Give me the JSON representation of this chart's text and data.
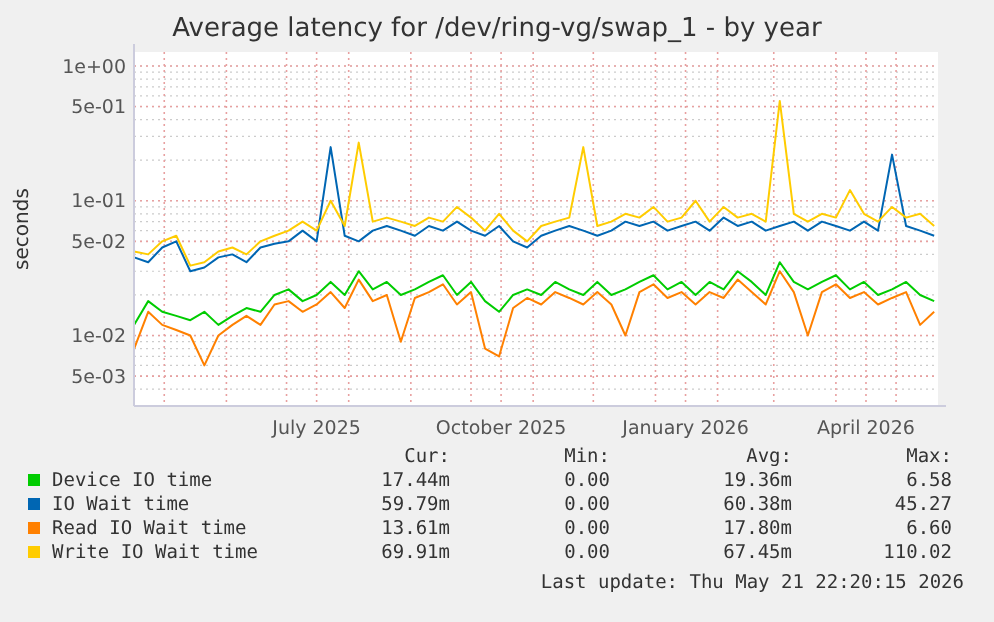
{
  "chart_data": {
    "type": "line",
    "title": "Average latency for /dev/ring-vg/swap_1 - by year",
    "ylabel": "seconds",
    "log": "y",
    "grid": true,
    "legend": "bottom",
    "line_style": "solid",
    "xlim": [
      "2025-04-15T22:00",
      "2026-05-21T22:00"
    ],
    "xticks": [
      {
        "value": "2025-05-01",
        "label": null
      },
      {
        "value": "2025-06-01",
        "label": null
      },
      {
        "value": "2025-07-01",
        "label": null
      },
      {
        "value": "2025-07-16",
        "label": "July 2025"
      },
      {
        "value": "2025-08-01",
        "label": null
      },
      {
        "value": "2025-09-01",
        "label": null
      },
      {
        "value": "2025-10-01",
        "label": null
      },
      {
        "value": "2025-10-16",
        "label": "October 2025"
      },
      {
        "value": "2025-11-01",
        "label": null
      },
      {
        "value": "2025-12-01",
        "label": null
      },
      {
        "value": "2026-01-01",
        "label": null
      },
      {
        "value": "2026-01-16",
        "label": "January 2026"
      },
      {
        "value": "2026-02-01",
        "label": null
      },
      {
        "value": "2026-03-01",
        "label": null
      },
      {
        "value": "2026-04-01",
        "label": null
      },
      {
        "value": "2026-04-16",
        "label": "April 2026"
      },
      {
        "value": "2026-05-01",
        "label": null
      }
    ],
    "ylim": [
      0.003,
      1.27
    ],
    "yticks": [
      {
        "value": 0.005,
        "label": "5e-03"
      },
      {
        "value": 0.01,
        "label": "1e-02"
      },
      {
        "value": 0.05,
        "label": "5e-02"
      },
      {
        "value": 0.1,
        "label": "1e-01"
      },
      {
        "value": 0.5,
        "label": "5e-01"
      },
      {
        "value": 1,
        "label": "1e+00"
      }
    ],
    "x": [
      "2025-04-16",
      "2025-04-23",
      "2025-04-30",
      "2025-05-07",
      "2025-05-14",
      "2025-05-21",
      "2025-05-28",
      "2025-06-04",
      "2025-06-11",
      "2025-06-18",
      "2025-06-25",
      "2025-07-02",
      "2025-07-09",
      "2025-07-16",
      "2025-07-23",
      "2025-07-30",
      "2025-08-06",
      "2025-08-13",
      "2025-08-20",
      "2025-08-27",
      "2025-09-03",
      "2025-09-10",
      "2025-09-17",
      "2025-09-24",
      "2025-10-01",
      "2025-10-08",
      "2025-10-15",
      "2025-10-22",
      "2025-10-29",
      "2025-11-05",
      "2025-11-12",
      "2025-11-19",
      "2025-11-26",
      "2025-12-03",
      "2025-12-10",
      "2025-12-17",
      "2025-12-24",
      "2025-12-31",
      "2026-01-07",
      "2026-01-14",
      "2026-01-21",
      "2026-01-28",
      "2026-02-04",
      "2026-02-11",
      "2026-02-18",
      "2026-02-25",
      "2026-03-04",
      "2026-03-11",
      "2026-03-18",
      "2026-03-25",
      "2026-04-01",
      "2026-04-08",
      "2026-04-15",
      "2026-04-22",
      "2026-04-29",
      "2026-05-06",
      "2026-05-13",
      "2026-05-20"
    ],
    "series": [
      {
        "name": "Device IO time",
        "color": "#00cc00",
        "values": [
          0.012,
          0.018,
          0.015,
          0.014,
          0.013,
          0.015,
          0.012,
          0.014,
          0.016,
          0.015,
          0.02,
          0.022,
          0.018,
          0.02,
          0.025,
          0.02,
          0.03,
          0.022,
          0.025,
          0.02,
          0.022,
          0.025,
          0.028,
          0.02,
          0.025,
          0.018,
          0.015,
          0.02,
          0.022,
          0.02,
          0.025,
          0.022,
          0.02,
          0.025,
          0.02,
          0.022,
          0.025,
          0.028,
          0.022,
          0.025,
          0.02,
          0.025,
          0.022,
          0.03,
          0.025,
          0.02,
          0.035,
          0.025,
          0.022,
          0.025,
          0.028,
          0.022,
          0.025,
          0.02,
          0.022,
          0.025,
          0.02,
          0.018
        ]
      },
      {
        "name": "IO Wait time",
        "color": "#0066b3",
        "values": [
          0.038,
          0.035,
          0.045,
          0.05,
          0.03,
          0.032,
          0.038,
          0.04,
          0.035,
          0.045,
          0.048,
          0.05,
          0.06,
          0.05,
          0.25,
          0.055,
          0.05,
          0.06,
          0.065,
          0.06,
          0.055,
          0.065,
          0.06,
          0.07,
          0.06,
          0.055,
          0.065,
          0.05,
          0.045,
          0.055,
          0.06,
          0.065,
          0.06,
          0.055,
          0.06,
          0.07,
          0.065,
          0.07,
          0.06,
          0.065,
          0.07,
          0.06,
          0.075,
          0.065,
          0.07,
          0.06,
          0.065,
          0.07,
          0.06,
          0.07,
          0.065,
          0.06,
          0.07,
          0.06,
          0.22,
          0.065,
          0.06,
          0.055
        ]
      },
      {
        "name": "Read IO Wait time",
        "color": "#ff8000",
        "values": [
          0.008,
          0.015,
          0.012,
          0.011,
          0.01,
          0.006,
          0.01,
          0.012,
          0.014,
          0.012,
          0.017,
          0.018,
          0.015,
          0.017,
          0.021,
          0.016,
          0.026,
          0.018,
          0.02,
          0.009,
          0.019,
          0.021,
          0.024,
          0.017,
          0.021,
          0.008,
          0.007,
          0.016,
          0.019,
          0.017,
          0.021,
          0.019,
          0.017,
          0.021,
          0.017,
          0.01,
          0.021,
          0.024,
          0.019,
          0.021,
          0.017,
          0.021,
          0.019,
          0.026,
          0.021,
          0.017,
          0.03,
          0.021,
          0.01,
          0.021,
          0.024,
          0.019,
          0.021,
          0.017,
          0.019,
          0.021,
          0.012,
          0.015
        ]
      },
      {
        "name": "Write IO Wait time",
        "color": "#ffcc00",
        "values": [
          0.042,
          0.04,
          0.05,
          0.055,
          0.033,
          0.035,
          0.042,
          0.045,
          0.04,
          0.05,
          0.055,
          0.06,
          0.07,
          0.06,
          0.1,
          0.065,
          0.27,
          0.07,
          0.075,
          0.07,
          0.065,
          0.075,
          0.07,
          0.09,
          0.075,
          0.06,
          0.08,
          0.06,
          0.05,
          0.065,
          0.07,
          0.075,
          0.25,
          0.065,
          0.07,
          0.08,
          0.075,
          0.09,
          0.07,
          0.075,
          0.1,
          0.07,
          0.09,
          0.075,
          0.08,
          0.07,
          0.55,
          0.08,
          0.07,
          0.08,
          0.075,
          0.12,
          0.08,
          0.07,
          0.09,
          0.075,
          0.08,
          0.065
        ]
      }
    ],
    "annotations": [
      "Cur:",
      "Min:",
      "Avg:",
      "Max:",
      "17.44m",
      "0.00",
      "19.36m",
      "6.58",
      "59.79m",
      "0.00",
      "60.38m",
      "45.27",
      "13.61m",
      "0.00",
      "17.80m",
      "6.60",
      "69.91m",
      "0.00",
      "67.45m",
      "110.02",
      "Last update: Thu May 21 22:20:15 2026"
    ]
  }
}
